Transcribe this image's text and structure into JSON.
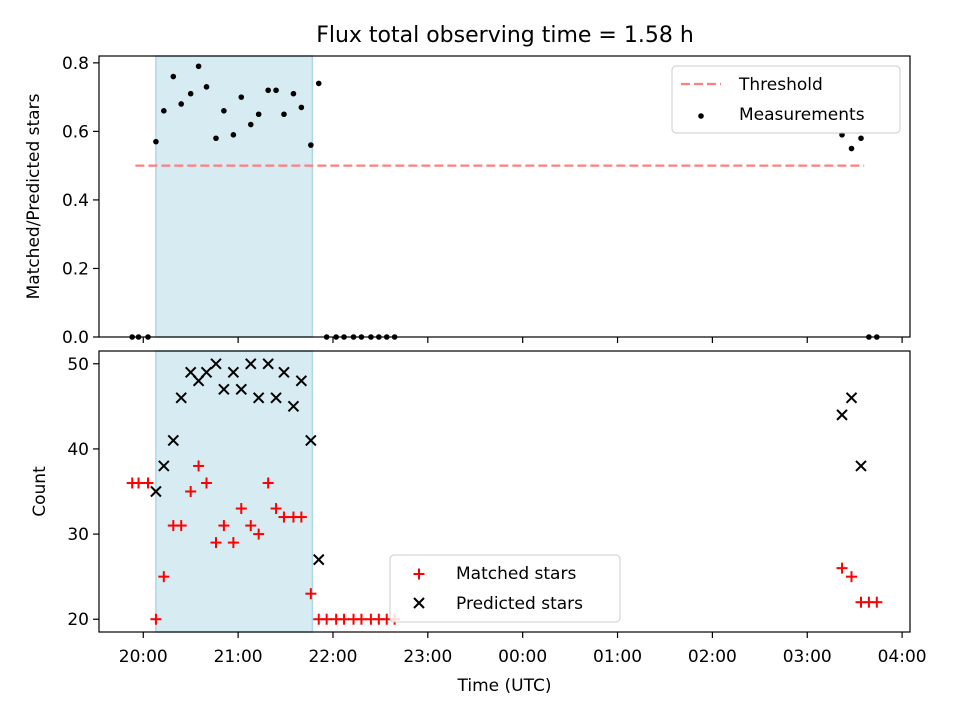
{
  "figure": {
    "title": "Flux total observing time = 1.58 h"
  },
  "chart_data": [
    {
      "type": "scatter",
      "ylabel": "Matched/Predicted stars",
      "ylim": [
        0,
        0.82
      ],
      "yticks": [
        0.0,
        0.2,
        0.4,
        0.6,
        0.8
      ],
      "ytick_labels": [
        "0.0",
        "0.2",
        "0.4",
        "0.6",
        "0.8"
      ],
      "legend_position": "top-right",
      "shaded_interval": [
        "20:08",
        "21:47"
      ],
      "threshold": {
        "name": "Threshold",
        "y": 0.5,
        "x_range": [
          "19:55",
          "03:36"
        ],
        "color": "#ff7f7f"
      },
      "series": [
        {
          "name": "Measurements",
          "marker": "dot",
          "color": "#000000",
          "points": [
            [
              "19:53",
              0.0
            ],
            [
              "19:57",
              0.0
            ],
            [
              "20:03",
              0.0
            ],
            [
              "20:08",
              0.57
            ],
            [
              "20:13",
              0.66
            ],
            [
              "20:19",
              0.76
            ],
            [
              "20:24",
              0.68
            ],
            [
              "20:30",
              0.71
            ],
            [
              "20:35",
              0.79
            ],
            [
              "20:40",
              0.73
            ],
            [
              "20:46",
              0.58
            ],
            [
              "20:51",
              0.66
            ],
            [
              "20:57",
              0.59
            ],
            [
              "21:02",
              0.7
            ],
            [
              "21:08",
              0.62
            ],
            [
              "21:13",
              0.65
            ],
            [
              "21:19",
              0.72
            ],
            [
              "21:24",
              0.72
            ],
            [
              "21:29",
              0.65
            ],
            [
              "21:35",
              0.71
            ],
            [
              "21:40",
              0.67
            ],
            [
              "21:46",
              0.56
            ],
            [
              "21:51",
              0.74
            ],
            [
              "21:56",
              0.0
            ],
            [
              "22:02",
              0.0
            ],
            [
              "22:07",
              0.0
            ],
            [
              "22:13",
              0.0
            ],
            [
              "22:18",
              0.0
            ],
            [
              "22:24",
              0.0
            ],
            [
              "22:29",
              0.0
            ],
            [
              "22:34",
              0.0
            ],
            [
              "22:39",
              0.0
            ],
            [
              "03:22",
              0.59
            ],
            [
              "03:28",
              0.55
            ],
            [
              "03:34",
              0.58
            ],
            [
              "03:39",
              0.0
            ],
            [
              "03:44",
              0.0
            ]
          ]
        }
      ]
    },
    {
      "type": "scatter",
      "ylabel": "Count",
      "xlabel": "Time (UTC)",
      "ylim": [
        18.5,
        51.5
      ],
      "yticks": [
        20,
        30,
        40,
        50
      ],
      "ytick_labels": [
        "20",
        "30",
        "40",
        "50"
      ],
      "xlim": [
        "19:32",
        "04:05"
      ],
      "xticks": [
        "20:00",
        "21:00",
        "22:00",
        "23:00",
        "00:00",
        "01:00",
        "02:00",
        "03:00",
        "04:00"
      ],
      "legend_position": "lower-center",
      "shaded_interval": [
        "20:08",
        "21:47"
      ],
      "series": [
        {
          "name": "Matched stars",
          "marker": "plus",
          "color": "#ff0000",
          "points": [
            [
              "19:53",
              36
            ],
            [
              "19:57",
              36
            ],
            [
              "20:03",
              36
            ],
            [
              "20:08",
              20
            ],
            [
              "20:13",
              25
            ],
            [
              "20:19",
              31
            ],
            [
              "20:24",
              31
            ],
            [
              "20:30",
              35
            ],
            [
              "20:35",
              38
            ],
            [
              "20:40",
              36
            ],
            [
              "20:46",
              29
            ],
            [
              "20:51",
              31
            ],
            [
              "20:57",
              29
            ],
            [
              "21:02",
              33
            ],
            [
              "21:08",
              31
            ],
            [
              "21:13",
              30
            ],
            [
              "21:19",
              36
            ],
            [
              "21:24",
              33
            ],
            [
              "21:29",
              32
            ],
            [
              "21:35",
              32
            ],
            [
              "21:40",
              32
            ],
            [
              "21:46",
              23
            ],
            [
              "21:51",
              20
            ],
            [
              "21:56",
              20
            ],
            [
              "22:02",
              20
            ],
            [
              "22:07",
              20
            ],
            [
              "22:13",
              20
            ],
            [
              "22:18",
              20
            ],
            [
              "22:24",
              20
            ],
            [
              "22:29",
              20
            ],
            [
              "22:34",
              20
            ],
            [
              "22:39",
              20
            ],
            [
              "03:22",
              26
            ],
            [
              "03:28",
              25
            ],
            [
              "03:34",
              22
            ],
            [
              "03:39",
              22
            ],
            [
              "03:44",
              22
            ]
          ]
        },
        {
          "name": "Predicted stars",
          "marker": "x",
          "color": "#000000",
          "points": [
            [
              "20:08",
              35
            ],
            [
              "20:13",
              38
            ],
            [
              "20:19",
              41
            ],
            [
              "20:24",
              46
            ],
            [
              "20:30",
              49
            ],
            [
              "20:35",
              48
            ],
            [
              "20:40",
              49
            ],
            [
              "20:46",
              50
            ],
            [
              "20:51",
              47
            ],
            [
              "20:57",
              49
            ],
            [
              "21:02",
              47
            ],
            [
              "21:08",
              50
            ],
            [
              "21:13",
              46
            ],
            [
              "21:19",
              50
            ],
            [
              "21:24",
              46
            ],
            [
              "21:29",
              49
            ],
            [
              "21:35",
              45
            ],
            [
              "21:40",
              48
            ],
            [
              "21:46",
              41
            ],
            [
              "21:51",
              27
            ],
            [
              "03:22",
              44
            ],
            [
              "03:28",
              46
            ],
            [
              "03:34",
              38
            ]
          ]
        }
      ]
    }
  ],
  "colors": {
    "shade": "#add8e6",
    "matched": "#ff0000",
    "predicted": "#000000",
    "measurements": "#000000",
    "threshold": "#ff7f7f"
  }
}
